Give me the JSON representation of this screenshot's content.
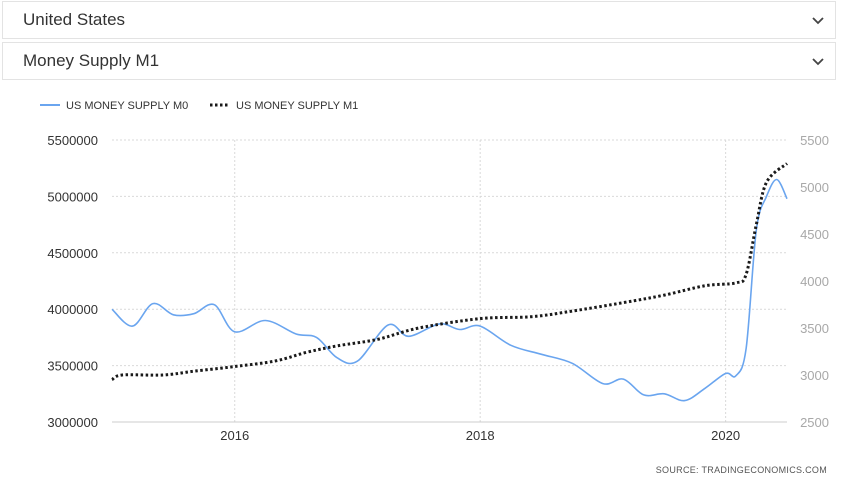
{
  "selectors": {
    "country": "United States",
    "indicator": "Money Supply M1"
  },
  "icons": {
    "dropdown": "chevron-down-icon"
  },
  "colors": {
    "m0": "#6aa5ef",
    "m1": "#1a1a1a",
    "grid": "#d9d9d9"
  },
  "source_text": "SOURCE: TRADINGECONOMICS.COM",
  "chart_data": {
    "type": "line",
    "legend_position": "top-left",
    "grid": true,
    "x_ticks": [
      "2016",
      "2018",
      "2020"
    ],
    "xlim": [
      "2015-01",
      "2020-07"
    ],
    "y_left": {
      "ticks": [
        "5500000",
        "5000000",
        "4500000",
        "4000000",
        "3500000",
        "3000000"
      ],
      "ylim": [
        3000000,
        5500000
      ]
    },
    "y_right": {
      "ticks": [
        "5500",
        "5000",
        "4500",
        "4000",
        "3500",
        "3000",
        "2500"
      ],
      "ylim": [
        2500,
        5500
      ]
    },
    "series": [
      {
        "name": "US MONEY SUPPLY M0",
        "axis": "left",
        "style": "solid",
        "points": [
          [
            "2015-01",
            4000000
          ],
          [
            "2015-03",
            3850000
          ],
          [
            "2015-05",
            4050000
          ],
          [
            "2015-07",
            3950000
          ],
          [
            "2015-09",
            3960000
          ],
          [
            "2015-11",
            4040000
          ],
          [
            "2016-01",
            3800000
          ],
          [
            "2016-04",
            3900000
          ],
          [
            "2016-07",
            3780000
          ],
          [
            "2016-09",
            3750000
          ],
          [
            "2016-11",
            3570000
          ],
          [
            "2017-01",
            3540000
          ],
          [
            "2017-04",
            3860000
          ],
          [
            "2017-06",
            3760000
          ],
          [
            "2017-09",
            3870000
          ],
          [
            "2017-11",
            3820000
          ],
          [
            "2018-01",
            3850000
          ],
          [
            "2018-04",
            3680000
          ],
          [
            "2018-07",
            3600000
          ],
          [
            "2018-10",
            3520000
          ],
          [
            "2019-01",
            3340000
          ],
          [
            "2019-03",
            3380000
          ],
          [
            "2019-05",
            3240000
          ],
          [
            "2019-07",
            3250000
          ],
          [
            "2019-09",
            3190000
          ],
          [
            "2019-11",
            3300000
          ],
          [
            "2020-01",
            3430000
          ],
          [
            "2020-02",
            3410000
          ],
          [
            "2020-03",
            3650000
          ],
          [
            "2020-04",
            4700000
          ],
          [
            "2020-05",
            5000000
          ],
          [
            "2020-06",
            5150000
          ],
          [
            "2020-07",
            4980000
          ]
        ]
      },
      {
        "name": "US MONEY SUPPLY M1",
        "axis": "right",
        "style": "dotted",
        "points": [
          [
            "2015-01",
            2950
          ],
          [
            "2015-02",
            3000
          ],
          [
            "2015-06",
            3000
          ],
          [
            "2015-09",
            3040
          ],
          [
            "2016-01",
            3090
          ],
          [
            "2016-05",
            3150
          ],
          [
            "2016-08",
            3240
          ],
          [
            "2016-11",
            3310
          ],
          [
            "2017-03",
            3380
          ],
          [
            "2017-07",
            3500
          ],
          [
            "2018-01",
            3600
          ],
          [
            "2018-06",
            3620
          ],
          [
            "2018-10",
            3680
          ],
          [
            "2019-03",
            3770
          ],
          [
            "2019-07",
            3850
          ],
          [
            "2019-11",
            3950
          ],
          [
            "2020-02",
            3980
          ],
          [
            "2020-03",
            4070
          ],
          [
            "2020-04",
            4600
          ],
          [
            "2020-05",
            5050
          ],
          [
            "2020-07",
            5250
          ]
        ]
      }
    ]
  }
}
